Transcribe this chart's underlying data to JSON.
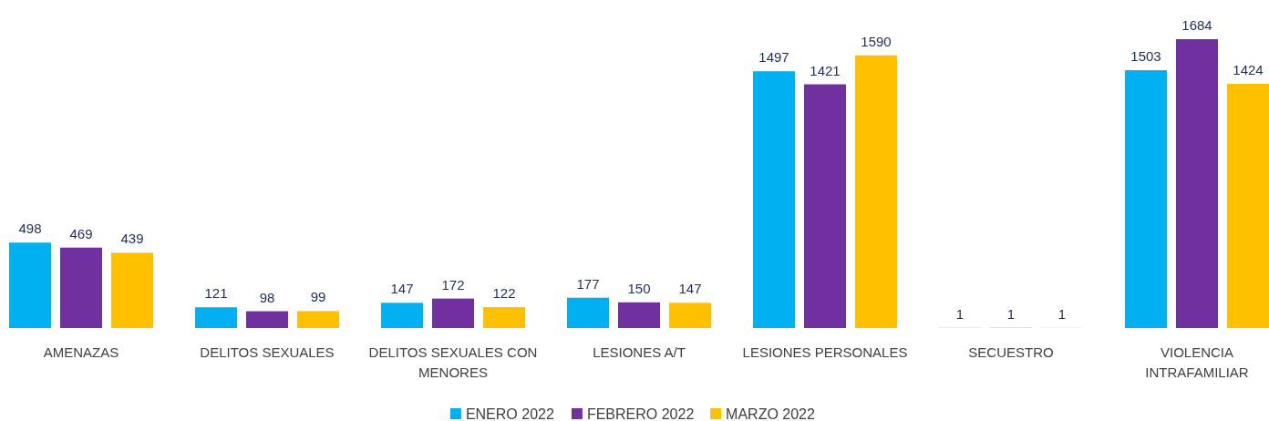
{
  "chart_data": {
    "type": "bar",
    "categories": [
      "AMENAZAS",
      "DELITOS SEXUALES",
      "DELITOS SEXUALES CON MENORES",
      "LESIONES A/T",
      "LESIONES PERSONALES",
      "SECUESTRO",
      "VIOLENCIA INTRAFAMILIAR"
    ],
    "series": [
      {
        "name": "ENERO 2022",
        "color": "#00b0f0",
        "values": [
          498,
          121,
          147,
          177,
          1497,
          1,
          1503
        ]
      },
      {
        "name": "FEBRERO 2022",
        "color": "#7030a0",
        "values": [
          469,
          98,
          172,
          150,
          1421,
          1,
          1684
        ]
      },
      {
        "name": "MARZO 2022",
        "color": "#ffc000",
        "values": [
          439,
          99,
          122,
          147,
          1590,
          1,
          1424
        ]
      }
    ],
    "data_labels": true,
    "legend": "bottom"
  }
}
